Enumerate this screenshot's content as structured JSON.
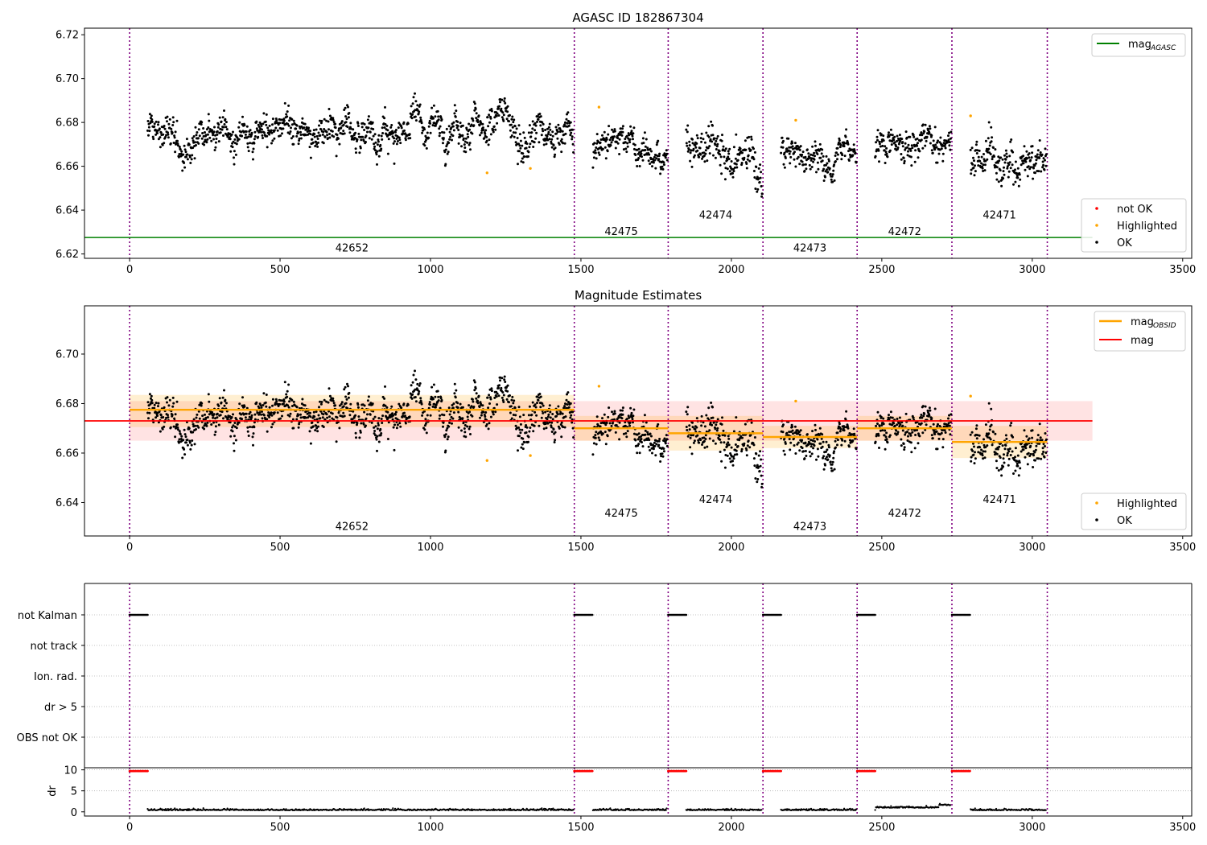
{
  "colors": {
    "black": "#000000",
    "orange": "#ffa500",
    "red": "#ff0000",
    "green": "#008000",
    "purple": "#800080",
    "grid": "#b0b0b0",
    "orange_band": "#fff0d6",
    "red_band": "#ffe3e3"
  },
  "chart_data": [
    {
      "type": "scatter",
      "title": "AGASC ID 182867304",
      "xlim": [
        -150,
        3530
      ],
      "ylim": [
        6.618,
        6.723
      ],
      "xticks": [
        0,
        500,
        1000,
        1500,
        2000,
        2500,
        3000,
        3500
      ],
      "yticks": [
        6.62,
        6.64,
        6.66,
        6.68,
        6.7,
        6.72
      ],
      "obs_boundaries": [
        0,
        1478,
        1790,
        2105,
        2418,
        2733,
        3050
      ],
      "obsids": [
        {
          "label": "42652",
          "x": 739,
          "y": 6.623
        },
        {
          "label": "42475",
          "x": 1634,
          "y": 6.6305
        },
        {
          "label": "42474",
          "x": 1948,
          "y": 6.638
        },
        {
          "label": "42473",
          "x": 2261,
          "y": 6.623
        },
        {
          "label": "42472",
          "x": 2576,
          "y": 6.6305
        },
        {
          "label": "42471",
          "x": 2891,
          "y": 6.638
        }
      ],
      "mag_agasc": 6.6275,
      "mag_agasc_range": [
        -150,
        3200
      ],
      "segments": [
        {
          "x0": 60,
          "x1": 1475,
          "base": 6.677,
          "amp": 0.0055,
          "trend": 0.002
        },
        {
          "x0": 1540,
          "x1": 1787,
          "base": 6.669,
          "amp": 0.005,
          "trend": 0.002
        },
        {
          "x0": 1850,
          "x1": 2102,
          "base": 6.667,
          "amp": 0.007,
          "trend": -0.012
        },
        {
          "x0": 2165,
          "x1": 2415,
          "base": 6.665,
          "amp": 0.005,
          "trend": -0.002
        },
        {
          "x0": 2478,
          "x1": 2730,
          "base": 6.67,
          "amp": 0.005,
          "trend": 0.002
        },
        {
          "x0": 2795,
          "x1": 3047,
          "base": 6.663,
          "amp": 0.007,
          "trend": 0.004
        }
      ],
      "highlighted": [
        [
          1188,
          6.657
        ],
        [
          1332,
          6.659
        ],
        [
          1560,
          6.687
        ],
        [
          2214,
          6.681
        ],
        [
          2795,
          6.683
        ]
      ],
      "legend_top": [
        "mag_AGASC"
      ],
      "legend_bottom": [
        "not OK",
        "Highlighted",
        "OK"
      ]
    },
    {
      "type": "scatter",
      "title": "Magnitude Estimates",
      "xlim": [
        -150,
        3530
      ],
      "ylim": [
        6.6265,
        6.7195
      ],
      "xticks": [
        0,
        500,
        1000,
        1500,
        2000,
        2500,
        3000,
        3500
      ],
      "yticks": [
        6.64,
        6.66,
        6.68,
        6.7
      ],
      "mag": 6.673,
      "mag_band": [
        6.665,
        6.681
      ],
      "mag_range": [
        0,
        3200
      ],
      "obsid_mags": [
        {
          "x0": 0,
          "x1": 1478,
          "mag": 6.6775,
          "lo": 6.6705,
          "hi": 6.6835
        },
        {
          "x0": 1478,
          "x1": 1790,
          "mag": 6.67,
          "lo": 6.665,
          "hi": 6.675
        },
        {
          "x0": 1790,
          "x1": 2105,
          "mag": 6.668,
          "lo": 6.661,
          "hi": 6.675
        },
        {
          "x0": 2105,
          "x1": 2418,
          "mag": 6.6665,
          "lo": 6.662,
          "hi": 6.671
        },
        {
          "x0": 2418,
          "x1": 2733,
          "mag": 6.67,
          "lo": 6.665,
          "hi": 6.675
        },
        {
          "x0": 2733,
          "x1": 3050,
          "mag": 6.6645,
          "lo": 6.658,
          "hi": 6.671
        }
      ],
      "obsids": [
        {
          "label": "42652",
          "x": 739,
          "y": 6.6305
        },
        {
          "label": "42475",
          "x": 1634,
          "y": 6.636
        },
        {
          "label": "42474",
          "x": 1948,
          "y": 6.6415
        },
        {
          "label": "42473",
          "x": 2261,
          "y": 6.6305
        },
        {
          "label": "42472",
          "x": 2576,
          "y": 6.636
        },
        {
          "label": "42471",
          "x": 2891,
          "y": 6.6415
        }
      ],
      "legend_top": [
        "mag_OBSID",
        "mag"
      ],
      "legend_bottom": [
        "Highlighted",
        "OK"
      ]
    },
    {
      "type": "scatter",
      "flags": [
        "not Kalman",
        "not track",
        "Ion. rad.",
        "dr > 5",
        "OBS not OK"
      ],
      "flag_runs": [
        [
          0,
          60
        ],
        [
          1478,
          1538
        ],
        [
          1790,
          1850
        ],
        [
          2105,
          2165
        ],
        [
          2418,
          2478
        ],
        [
          2733,
          2795
        ]
      ],
      "dr_ylabel": "dr",
      "dr_yticks": [
        0,
        5,
        10
      ],
      "dr_ylim": [
        -1,
        10.5
      ],
      "dr_clipped_value": 9.7,
      "xticks": [
        0,
        500,
        1000,
        1500,
        2000,
        2500,
        3000,
        3500
      ]
    }
  ]
}
